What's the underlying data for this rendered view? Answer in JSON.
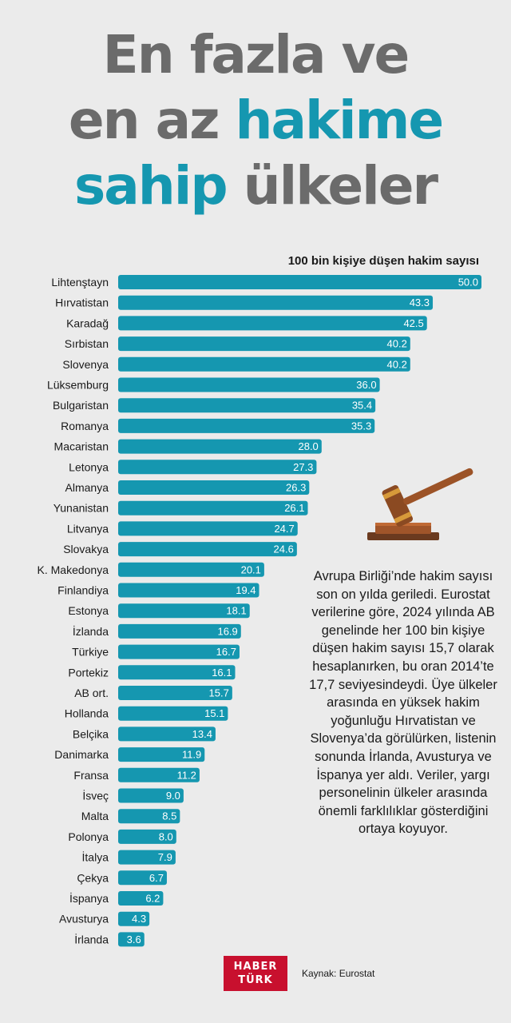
{
  "title": {
    "line1": "En fazla ve",
    "line2_plain": "en az ",
    "line2_accent": "hakime",
    "line3_accent": "sahip",
    "line3_plain": " ülkeler"
  },
  "colors": {
    "bar": "#1597b0",
    "title_gray": "#6b6b6b",
    "background": "#ebebeb",
    "logo_red": "#c8102e"
  },
  "chart_data": {
    "type": "bar",
    "orientation": "horizontal",
    "title": "100 bin kişiye düşen hakim sayısı",
    "categories": [
      "Lihtenştayn",
      "Hırvatistan",
      "Karadağ",
      "Sırbistan",
      "Slovenya",
      "Lüksemburg",
      "Bulgaristan",
      "Romanya",
      "Macaristan",
      "Letonya",
      "Almanya",
      "Yunanistan",
      "Litvanya",
      "Slovakya",
      "K. Makedonya",
      "Finlandiya",
      "Estonya",
      "İzlanda",
      "Türkiye",
      "Portekiz",
      "AB ort.",
      "Hollanda",
      "Belçika",
      "Danimarka",
      "Fransa",
      "İsveç",
      "Malta",
      "Polonya",
      "İtalya",
      "Çekya",
      "İspanya",
      "Avusturya",
      "İrlanda"
    ],
    "values": [
      50.0,
      43.3,
      42.5,
      40.2,
      40.2,
      36.0,
      35.4,
      35.3,
      28.0,
      27.3,
      26.3,
      26.1,
      24.7,
      24.6,
      20.1,
      19.4,
      18.1,
      16.9,
      16.7,
      16.1,
      15.7,
      15.1,
      13.4,
      11.9,
      11.2,
      9.0,
      8.5,
      8.0,
      7.9,
      6.7,
      6.2,
      4.3,
      3.6
    ],
    "value_labels": [
      "50.0",
      "43.3",
      "42.5",
      "40.2",
      "40.2",
      "36.0",
      "35.4",
      "35.3",
      "28.0",
      "27.3",
      "26.3",
      "26.1",
      "24.7",
      "24.6",
      "20.1",
      "19.4",
      "18.1",
      "16.9",
      "16.7",
      "16.1",
      "15.7",
      "15.1",
      "13.4",
      "11.9",
      "11.2",
      "9.0",
      "8.5",
      "8.0",
      "7.9",
      "6.7",
      "6.2",
      "4.3",
      "3.6"
    ],
    "xlim": [
      0,
      50
    ],
    "grid": false,
    "legend": "none"
  },
  "description": "Avrupa Birliği’nde hakim sayısı son on yılda geriledi. Eurostat verilerine göre, 2024 yılında AB genelinde her 100 bin kişiye düşen hakim sayısı 15,7 olarak hesaplanırken, bu oran 2014’te 17,7 seviyesindeydi. Üye ülkeler arasında en yüksek hakim yoğunluğu Hırvatistan ve Slovenya’da görülürken, listenin sonunda İrlanda, Avusturya ve İspanya yer aldı. Veriler, yargı personelinin ülkeler arasında önemli farklılıklar gösterdiğini ortaya koyuyor.",
  "footer": {
    "logo_line1": "HABER",
    "logo_line2": "TÜRK",
    "source": "Kaynak: Eurostat"
  },
  "icons": {
    "illustration": "gavel-icon"
  }
}
